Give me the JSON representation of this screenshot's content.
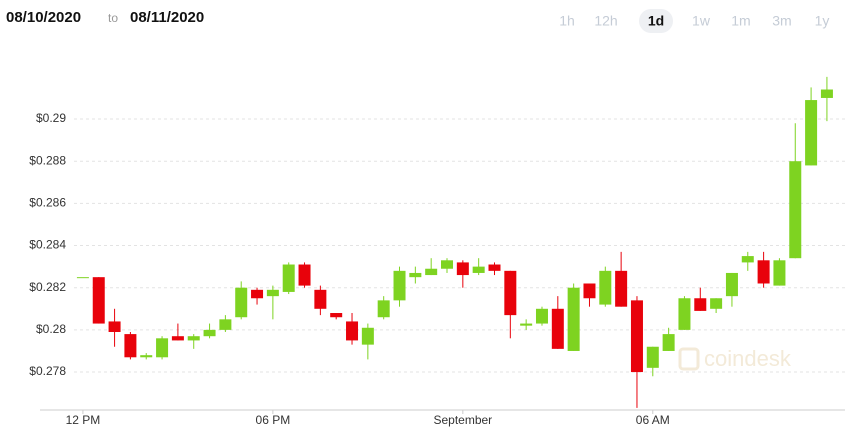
{
  "header": {
    "date_from": "08/10/2020",
    "separator": "to",
    "date_to": "08/11/2020",
    "ranges": [
      "1h",
      "12h",
      "1d",
      "1w",
      "1m",
      "3m",
      "1y"
    ],
    "selected_range": "1d"
  },
  "chart_data": {
    "type": "candlestick",
    "watermark": "coindesk",
    "categories": [
      "12 PM",
      null,
      null,
      null,
      null,
      null,
      null,
      null,
      null,
      null,
      null,
      null,
      "06 PM",
      null,
      null,
      null,
      null,
      null,
      null,
      null,
      null,
      null,
      null,
      null,
      "September",
      null,
      null,
      null,
      null,
      null,
      null,
      null,
      null,
      null,
      null,
      null,
      "06 AM",
      null,
      null,
      null,
      null,
      null,
      null,
      null,
      null,
      null,
      null,
      null
    ],
    "open": [
      0.2825,
      0.2825,
      0.2804,
      0.2798,
      0.2787,
      0.2787,
      0.2797,
      0.2795,
      0.2797,
      0.28,
      0.2806,
      0.2819,
      0.2816,
      0.2818,
      0.2831,
      0.2819,
      0.2808,
      0.2804,
      0.2793,
      0.2806,
      0.2814,
      0.2825,
      0.2826,
      0.2829,
      0.2832,
      0.2827,
      0.2831,
      0.2828,
      0.2802,
      0.2803,
      0.281,
      0.279,
      0.2822,
      0.2812,
      0.2828,
      0.2814,
      0.2782,
      0.279,
      0.28,
      0.2815,
      0.281,
      0.2816,
      0.2832,
      0.2833,
      0.2821,
      0.2834,
      0.2878,
      0.291
    ],
    "high": [
      0.2825,
      0.2825,
      0.281,
      0.2799,
      0.2789,
      0.2797,
      0.2803,
      0.2798,
      0.2803,
      0.2807,
      0.2823,
      0.282,
      0.2821,
      0.2832,
      0.2832,
      0.2821,
      0.2808,
      0.2808,
      0.2803,
      0.2816,
      0.283,
      0.283,
      0.2834,
      0.2834,
      0.2833,
      0.2834,
      0.2832,
      0.2828,
      0.2805,
      0.2811,
      0.2816,
      0.2822,
      0.2822,
      0.283,
      0.2837,
      0.2816,
      0.2792,
      0.2801,
      0.2816,
      0.282,
      0.2815,
      0.2827,
      0.2837,
      0.2837,
      0.2834,
      0.2898,
      0.2915,
      0.292
    ],
    "low": [
      0.2825,
      0.2803,
      0.2792,
      0.2786,
      0.2786,
      0.2786,
      0.2795,
      0.2791,
      0.2796,
      0.2799,
      0.2805,
      0.2812,
      0.2805,
      0.2817,
      0.282,
      0.2807,
      0.2805,
      0.2793,
      0.2786,
      0.2805,
      0.2811,
      0.2822,
      0.2826,
      0.2827,
      0.282,
      0.2826,
      0.2826,
      0.2796,
      0.28,
      0.2802,
      0.2791,
      0.279,
      0.2811,
      0.2811,
      0.2811,
      0.2763,
      0.2778,
      0.279,
      0.28,
      0.2809,
      0.2808,
      0.2811,
      0.2828,
      0.282,
      0.2821,
      0.2834,
      0.2878,
      0.2899
    ],
    "close": [
      0.2825,
      0.2803,
      0.2799,
      0.2787,
      0.2788,
      0.2796,
      0.2795,
      0.2797,
      0.28,
      0.2805,
      0.282,
      0.2815,
      0.2819,
      0.2831,
      0.2821,
      0.281,
      0.2806,
      0.2795,
      0.2801,
      0.2814,
      0.2828,
      0.2827,
      0.2829,
      0.2833,
      0.2826,
      0.283,
      0.2828,
      0.2807,
      0.2803,
      0.281,
      0.2791,
      0.282,
      0.2815,
      0.2828,
      0.2811,
      0.278,
      0.2792,
      0.2798,
      0.2815,
      0.2809,
      0.2815,
      0.2827,
      0.2835,
      0.2822,
      0.2833,
      0.288,
      0.2909,
      0.2914
    ],
    "up_color": "#7ed321",
    "down_color": "#e8020b",
    "ylim": [
      0.2762,
      0.2928
    ],
    "yticks": [
      {
        "value": 0.278,
        "label": "$0.278"
      },
      {
        "value": 0.28,
        "label": "$0.28"
      },
      {
        "value": 0.282,
        "label": "$0.282"
      },
      {
        "value": 0.284,
        "label": "$0.284"
      },
      {
        "value": 0.286,
        "label": "$0.286"
      },
      {
        "value": 0.288,
        "label": "$0.288"
      },
      {
        "value": 0.29,
        "label": "$0.29"
      }
    ],
    "grid": true
  }
}
